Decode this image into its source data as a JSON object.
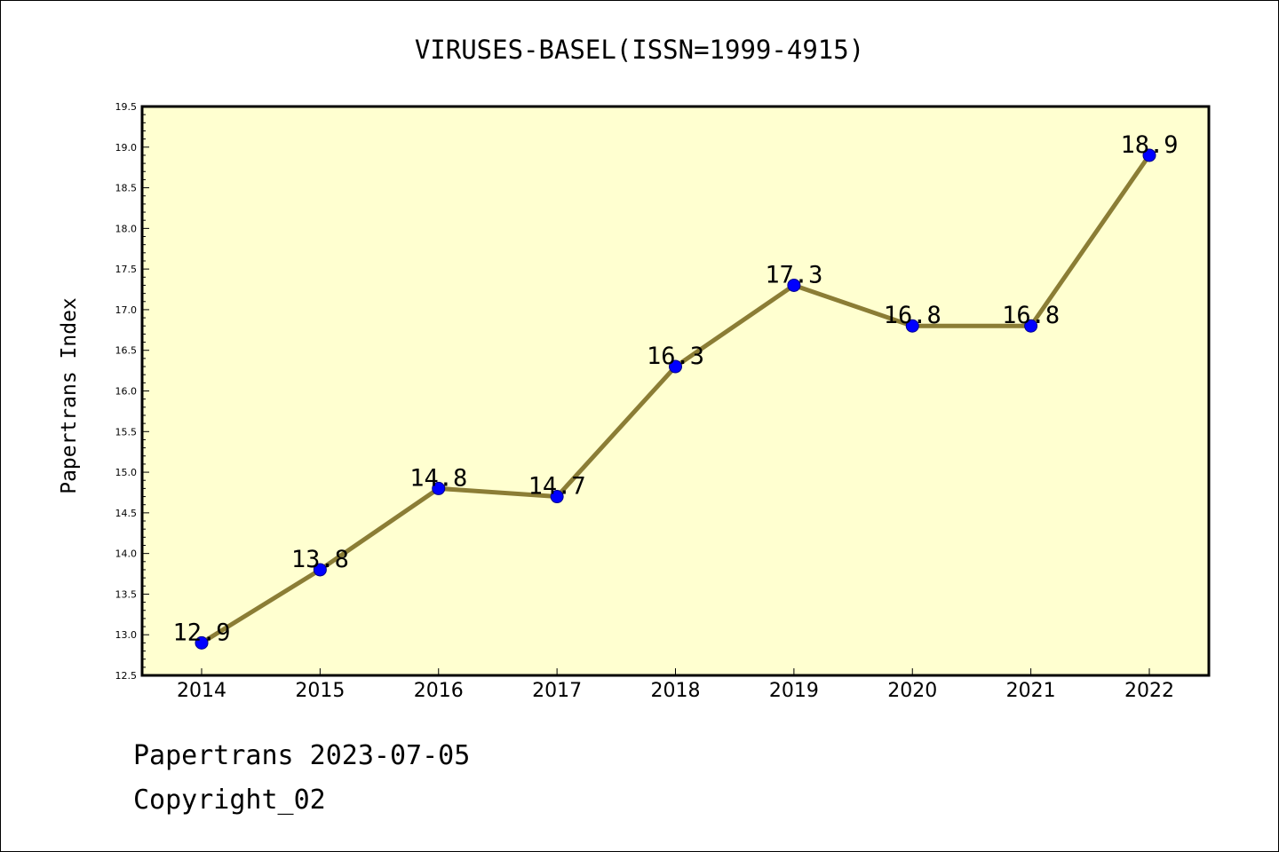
{
  "chart_data": {
    "type": "line",
    "title": "VIRUSES-BASEL(ISSN=1999-4915)",
    "xlabel": "",
    "ylabel": "Papertrans Index",
    "categories": [
      "2014",
      "2015",
      "2016",
      "2017",
      "2018",
      "2019",
      "2020",
      "2021",
      "2022"
    ],
    "values": [
      12.9,
      13.8,
      14.8,
      14.7,
      16.3,
      17.3,
      16.8,
      16.8,
      18.9
    ],
    "data_labels": [
      "12.9",
      "13.8",
      "14.8",
      "14.7",
      "16.3",
      "17.3",
      "16.8",
      "16.8",
      "18.9"
    ],
    "ylim": [
      12.5,
      19.5
    ],
    "yticks": [
      "12.5",
      "13.0",
      "13.5",
      "14.0",
      "14.5",
      "15.0",
      "15.5",
      "16.0",
      "16.5",
      "17.0",
      "17.5",
      "18.0",
      "18.5",
      "19.0",
      "19.5"
    ],
    "grid": false,
    "legend": "none",
    "colors": {
      "plot_background": "#ffffd0",
      "line": "#8b7d35",
      "marker": "#0000ff",
      "marker_edge": "#00008b"
    }
  },
  "footer": {
    "date_line": "Papertrans 2023-07-05",
    "copyright": "Copyright_02"
  }
}
